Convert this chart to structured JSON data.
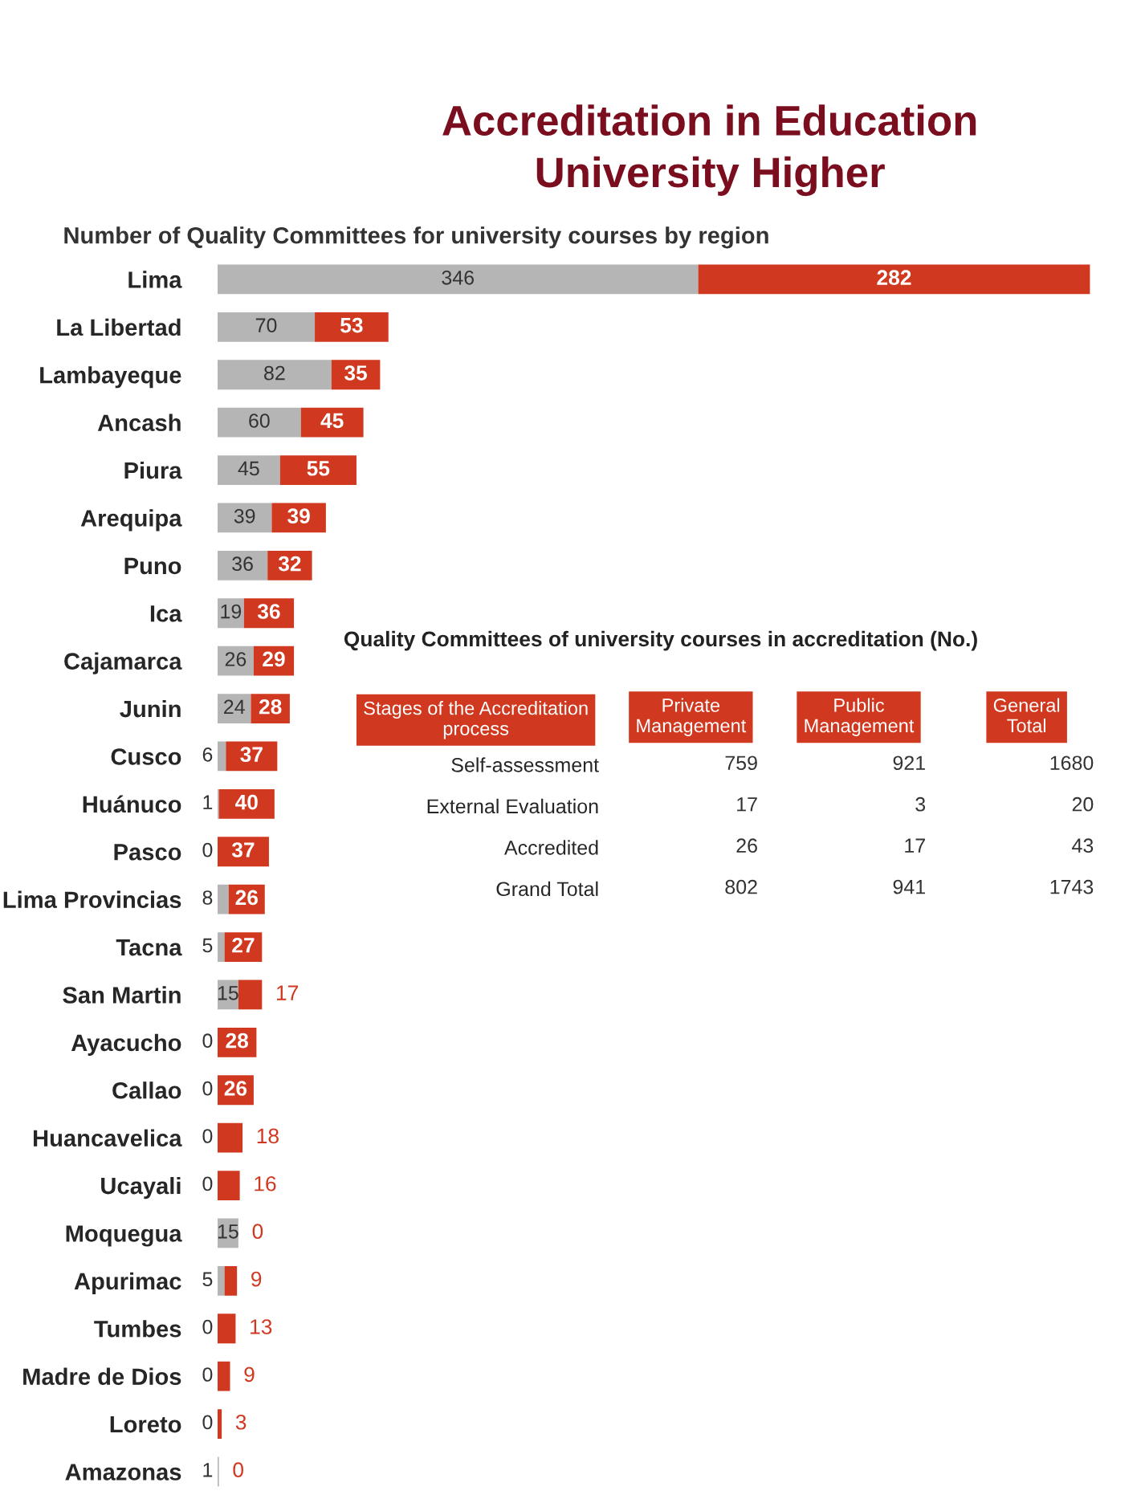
{
  "chart_data": [
    {
      "type": "bar",
      "orientation": "horizontal",
      "stacked": true,
      "title": "Accreditation in Education\nUniversity Higher",
      "subtitle": "Number of Quality Committees for university courses by region",
      "categories": [
        "Lima",
        "La Libertad",
        "Lambayeque",
        "Ancash",
        "Piura",
        "Arequipa",
        "Puno",
        "Ica",
        "Cajamarca",
        "Junin",
        "Cusco",
        "Huánuco",
        "Pasco",
        "Lima Provincias",
        "Tacna",
        "San Martin",
        "Ayacucho",
        "Callao",
        "Huancavelica",
        "Ucayali",
        "Moquegua",
        "Apurimac",
        "Tumbes",
        "Madre de Dios",
        "Loreto",
        "Amazonas"
      ],
      "series": [
        {
          "color": "#b5b5b5",
          "values": [
            346,
            70,
            82,
            60,
            45,
            39,
            36,
            19,
            26,
            24,
            6,
            1,
            0,
            8,
            5,
            15,
            0,
            0,
            0,
            0,
            15,
            5,
            0,
            0,
            0,
            1
          ]
        },
        {
          "color": "#d0391f",
          "values": [
            282,
            53,
            35,
            45,
            55,
            39,
            32,
            36,
            29,
            28,
            37,
            40,
            37,
            26,
            27,
            17,
            28,
            26,
            18,
            16,
            0,
            9,
            13,
            9,
            3,
            0
          ]
        }
      ],
      "data_labels": true,
      "tick_labels": "y",
      "grid": false,
      "legend": false
    },
    {
      "type": "heatmap",
      "title": "Quality Committees of university courses in accreditation (No.)",
      "ylabel": "Stages of the Accreditation process",
      "categories": [
        "Private Management",
        "Public Management",
        "General Total"
      ],
      "y_categories": [
        "Self-assessment",
        "External Evaluation",
        "Accredited",
        "Grand Total"
      ],
      "cells": [
        [
          759,
          921,
          1680
        ],
        [
          17,
          3,
          20
        ],
        [
          26,
          17,
          43
        ],
        [
          802,
          941,
          1743
        ]
      ],
      "data_labels": true
    }
  ]
}
